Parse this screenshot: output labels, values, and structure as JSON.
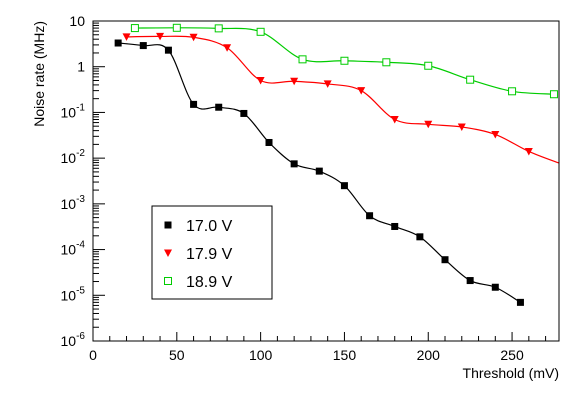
{
  "chart_data": {
    "type": "scatter",
    "xlabel": "Threshold (mV)",
    "ylabel": "Noise rate (MHz)",
    "xlim": [
      0,
      278
    ],
    "ylim": [
      1e-06,
      10
    ],
    "yscale": "log",
    "x_ticks": [
      0,
      50,
      100,
      150,
      200,
      250
    ],
    "y_ticks": [
      {
        "value": 1e-06,
        "base": "10",
        "exp": "-6"
      },
      {
        "value": 1e-05,
        "base": "10",
        "exp": "-5"
      },
      {
        "value": 0.0001,
        "base": "10",
        "exp": "-4"
      },
      {
        "value": 0.001,
        "base": "10",
        "exp": "-3"
      },
      {
        "value": 0.01,
        "base": "10",
        "exp": "-2"
      },
      {
        "value": 0.1,
        "base": "10",
        "exp": "-1"
      },
      {
        "value": 1,
        "base": "1",
        "exp": ""
      },
      {
        "value": 10,
        "base": "10",
        "exp": ""
      }
    ],
    "legend_position": "lower-left",
    "series": [
      {
        "name": "17.0 V",
        "color": "#000000",
        "marker": "filled-square",
        "x": [
          15,
          30,
          45,
          60,
          75,
          90,
          105,
          120,
          135,
          150,
          165,
          180,
          195,
          210,
          225,
          240,
          255
        ],
        "y": [
          3.3,
          2.9,
          2.3,
          0.15,
          0.13,
          0.095,
          0.022,
          0.0075,
          0.0052,
          0.0025,
          0.00055,
          0.00032,
          0.00019,
          6e-05,
          2.1e-05,
          1.5e-05,
          7e-06
        ]
      },
      {
        "name": "17.9 V",
        "color": "#ff0000",
        "marker": "filled-triangle-down",
        "x": [
          20,
          40,
          60,
          80,
          100,
          120,
          140,
          160,
          180,
          200,
          220,
          240,
          260
        ],
        "y": [
          4.5,
          4.6,
          4.4,
          2.6,
          0.5,
          0.48,
          0.42,
          0.3,
          0.07,
          0.055,
          0.048,
          0.033,
          0.014
        ],
        "line_extends_to": [
          278,
          0.0078
        ]
      },
      {
        "name": "18.9 V",
        "color": "#00cc00",
        "marker": "open-square",
        "x": [
          25,
          50,
          75,
          100,
          125,
          150,
          175,
          200,
          225,
          250,
          275
        ],
        "y": [
          7.0,
          7.1,
          6.9,
          5.8,
          1.45,
          1.35,
          1.25,
          1.05,
          0.52,
          0.29,
          0.25
        ]
      }
    ]
  }
}
